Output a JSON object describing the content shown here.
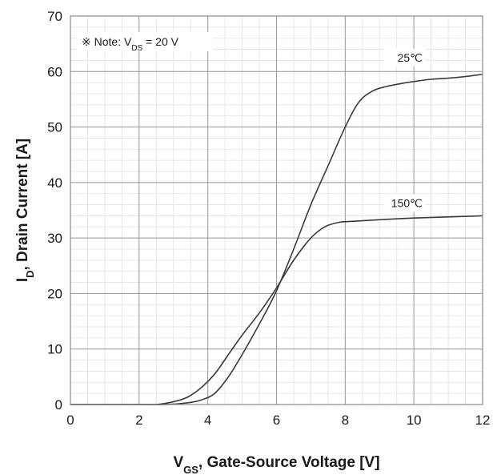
{
  "chart_data": {
    "type": "line",
    "xlabel": {
      "main": "V",
      "sub": "GS",
      "rest": ", Gate-Source Voltage [V]"
    },
    "ylabel": {
      "main": "I",
      "sub": "D",
      "rest": ", Drain Current [A]"
    },
    "note": {
      "prefix": "※ Note: V",
      "sub": "DS",
      "rest": " = 20 V"
    },
    "xlim": [
      0,
      12
    ],
    "ylim": [
      0,
      70
    ],
    "x_ticks": [
      0,
      2,
      4,
      6,
      8,
      10,
      12
    ],
    "y_ticks": [
      0,
      10,
      20,
      30,
      40,
      50,
      60,
      70
    ],
    "x_minor_step": 0.5,
    "y_minor_step": 2,
    "grid": true,
    "series": [
      {
        "name": "25℃",
        "color": "#3a3a3a",
        "points": [
          [
            0,
            0
          ],
          [
            1,
            0
          ],
          [
            2,
            0
          ],
          [
            2.8,
            0
          ],
          [
            3.4,
            0.3
          ],
          [
            3.8,
            0.8
          ],
          [
            4.2,
            2
          ],
          [
            4.6,
            5
          ],
          [
            5,
            9
          ],
          [
            5.5,
            14.5
          ],
          [
            6,
            20.5
          ],
          [
            6.5,
            28
          ],
          [
            7,
            36
          ],
          [
            7.5,
            43
          ],
          [
            8,
            50
          ],
          [
            8.4,
            54.5
          ],
          [
            8.8,
            56.5
          ],
          [
            9.2,
            57.3
          ],
          [
            9.6,
            57.8
          ],
          [
            10,
            58.2
          ],
          [
            10.5,
            58.6
          ],
          [
            11,
            58.8
          ],
          [
            11.5,
            59.1
          ],
          [
            12,
            59.5
          ]
        ]
      },
      {
        "name": "150℃",
        "color": "#3a3a3a",
        "points": [
          [
            0,
            0
          ],
          [
            1,
            0
          ],
          [
            2,
            0
          ],
          [
            2.5,
            0
          ],
          [
            3,
            0.5
          ],
          [
            3.4,
            1.3
          ],
          [
            3.8,
            3
          ],
          [
            4.2,
            5.5
          ],
          [
            4.6,
            9
          ],
          [
            5,
            12.5
          ],
          [
            5.5,
            16.5
          ],
          [
            6,
            21
          ],
          [
            6.5,
            26
          ],
          [
            7,
            30
          ],
          [
            7.4,
            32
          ],
          [
            7.8,
            32.8
          ],
          [
            8.2,
            33
          ],
          [
            9,
            33.3
          ],
          [
            10,
            33.6
          ],
          [
            11,
            33.8
          ],
          [
            12,
            34
          ]
        ]
      }
    ]
  }
}
